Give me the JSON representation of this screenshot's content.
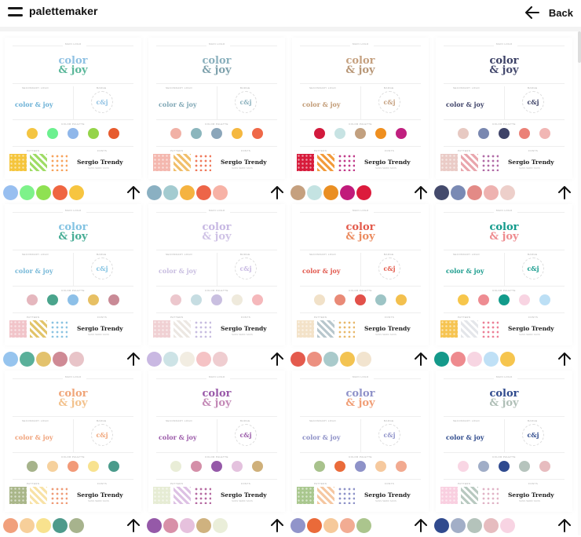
{
  "app": {
    "brand": "palettemaker",
    "back_label": "Back"
  },
  "board_labels": {
    "main_logo": "MAIN LOGO",
    "secondary_logo": "SECONDARY LOGO",
    "badge": "BADGE",
    "color_palette": "COLOR PALETTE",
    "pattern": "PATTERN",
    "fonts": "FONTS",
    "logo_line1": "color",
    "logo_line2": "& joy",
    "secondary": "color & joy",
    "badge_text": "c&j",
    "font_name": "Sergio Trendy",
    "font_sub": "SANS SERIF SANS"
  },
  "icons": {
    "menu": "menu-icon",
    "back": "arrow-left-icon",
    "up": "arrow-up-icon"
  },
  "cards": [
    {
      "logo1": "#8fc1e3",
      "logo2": "#5ab79a",
      "sec": "#6ab0d6",
      "dots": [
        "#f4c542",
        "#6cf08f",
        "#8fb7ea",
        "#95d44a",
        "#e75b2e"
      ],
      "swatches": [
        "#98bff0",
        "#7ef28a",
        "#8fe152",
        "#ef6541",
        "#f7c540"
      ],
      "pat": [
        "#f5c53c",
        "#9fdc66",
        "#f7a35c"
      ]
    },
    {
      "logo1": "#8ab0bd",
      "logo2": "#7fa2ad",
      "sec": "#7fa7b5",
      "dots": [
        "#f1b1a6",
        "#8bb6bd",
        "#8ba6ba",
        "#f5b840",
        "#ef6848"
      ],
      "swatches": [
        "#8ab0c2",
        "#a3cbd0",
        "#f5b340",
        "#ed6548",
        "#f7b2a6"
      ],
      "pat": [
        "#f4b7ae",
        "#f1bf6c",
        "#ef7a5c"
      ]
    },
    {
      "logo1": "#c5a07f",
      "logo2": "#b89777",
      "sec": "#c19a74",
      "dots": [
        "#d21a3d",
        "#c7e3e3",
        "#c2a07f",
        "#ef8f1f",
        "#c0207f"
      ],
      "swatches": [
        "#c5a07f",
        "#c4e3e2",
        "#ea8f22",
        "#c11b7b",
        "#dc1b3c"
      ],
      "pat": [
        "#d71b3b",
        "#f29b3c",
        "#c13c8a"
      ]
    },
    {
      "logo1": "#3b4065",
      "logo2": "#454a6e",
      "sec": "#3e4268",
      "dots": [
        "#e7c9c2",
        "#7987b0",
        "#3e4368",
        "#eb8177",
        "#f1b6b4"
      ],
      "swatches": [
        "#444a6c",
        "#7a8ab4",
        "#e38a86",
        "#eeb2b0",
        "#edcfca"
      ],
      "pat": [
        "#eacbc6",
        "#e9a6ad",
        "#b06aa5"
      ]
    },
    {
      "logo1": "#83c3e2",
      "logo2": "#47ad95",
      "sec": "#76b8d8",
      "dots": [
        "#e5b7be",
        "#4aa48c",
        "#8dc0e8",
        "#e7c064",
        "#c98a96"
      ],
      "swatches": [
        "#96c4ee",
        "#5ab09a",
        "#e3c26d",
        "#cf8a95",
        "#e8c4c8"
      ],
      "pat": [
        "#f1c4c9",
        "#e2c46a",
        "#8bc3e2"
      ]
    },
    {
      "logo1": "#c7b8e3",
      "logo2": "#d0c3e6",
      "sec": "#c8bde0",
      "dots": [
        "#ecc7cd",
        "#c6dde2",
        "#c9bfe0",
        "#efeadc",
        "#f5b8bb"
      ],
      "swatches": [
        "#c9b8e2",
        "#cde3e6",
        "#f2ede2",
        "#f5c3c5",
        "#efcdd0"
      ],
      "pat": [
        "#f0d0d3",
        "#ece7e2",
        "#c7bce0"
      ]
    },
    {
      "logo1": "#e35a4b",
      "logo2": "#eb8b5f",
      "sec": "#e1574c",
      "dots": [
        "#f1e1c8",
        "#e98a77",
        "#e2514a",
        "#9dc4c5",
        "#f3c04e"
      ],
      "swatches": [
        "#e45a4d",
        "#ec9080",
        "#a9cacb",
        "#f3c351",
        "#f2e4cf"
      ],
      "pat": [
        "#f3e2c8",
        "#b8c7cd",
        "#e8b86a"
      ]
    },
    {
      "logo1": "#129a8b",
      "logo2": "#ee8b8f",
      "sec": "#1a9c8d",
      "dots": [
        "#f7c64b",
        "#ee8c92",
        "#129b8b",
        "#f8d4e2",
        "#bcdff5"
      ],
      "swatches": [
        "#14998a",
        "#ee8a8e",
        "#f7d5e2",
        "#bfe0f6",
        "#f6c54e"
      ],
      "pat": [
        "#f6c451",
        "#e4e6ea",
        "#ec7f96"
      ]
    },
    {
      "logo1": "#f0a579",
      "logo2": "#f3c28d",
      "sec": "#f0a27a",
      "dots": [
        "#a6b38b",
        "#f6d19d",
        "#f29a78",
        "#f8e28f",
        "#4a9b8b"
      ],
      "swatches": [
        "#f1a07c",
        "#f7cf9a",
        "#f8e28e",
        "#4e9a8b",
        "#a7b38d"
      ],
      "pat": [
        "#a9b689",
        "#f8e2a6",
        "#ef9a76"
      ]
    },
    {
      "logo1": "#9a5aa9",
      "logo2": "#c48ab7",
      "sec": "#9b5aa9",
      "dots": [
        "#e9edd7",
        "#d48fa8",
        "#9559a8",
        "#e4c2de",
        "#cfb07a"
      ],
      "swatches": [
        "#9559a8",
        "#d890a8",
        "#e6c1dd",
        "#cfb27f",
        "#eaeed9"
      ],
      "pat": [
        "#e6ecd4",
        "#ddc1e4",
        "#b66aa1"
      ]
    },
    {
      "logo1": "#8f92c9",
      "logo2": "#f19e76",
      "sec": "#8c8fc6",
      "dots": [
        "#a8c28c",
        "#ea6b3a",
        "#8e92c8",
        "#f6c99e",
        "#f2aa90"
      ],
      "swatches": [
        "#9194ca",
        "#ea6a39",
        "#f6c99a",
        "#f2ac93",
        "#abc58d"
      ],
      "pat": [
        "#a9c78e",
        "#f5c7a1",
        "#8e93c8"
      ]
    },
    {
      "logo1": "#2f4a8d",
      "logo2": "#b0bfb7",
      "sec": "#2e4a8c",
      "dots": [
        "#f9d6e4",
        "#a0adc7",
        "#2f4a8f",
        "#b6c4bd",
        "#e7bcbf"
      ],
      "swatches": [
        "#304a8e",
        "#a2aec7",
        "#b4c3bb",
        "#e6bcbf",
        "#f8d4e3"
      ],
      "pat": [
        "#f9cfe0",
        "#b8c9c0",
        "#e0b3c6"
      ]
    }
  ]
}
